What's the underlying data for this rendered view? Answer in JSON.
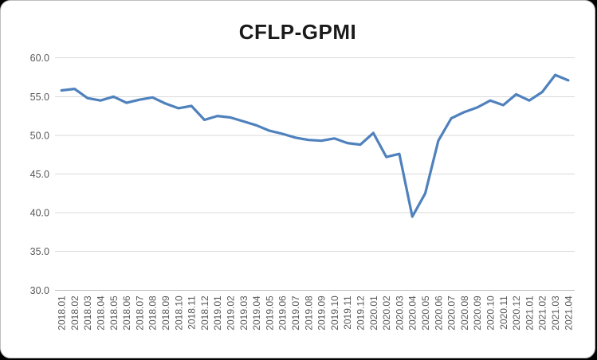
{
  "chart_data": {
    "type": "line",
    "title": "CFLP-GPMI",
    "categories": [
      "2018.01",
      "2018.02",
      "2018.03",
      "2018.04",
      "2018.05",
      "2018.06",
      "2018.07",
      "2018.08",
      "2018.09",
      "2018.10",
      "2018.11",
      "2018.12",
      "2019.01",
      "2019.02",
      "2019.03",
      "2019.04",
      "2019.05",
      "2019.06",
      "2019.07",
      "2019.08",
      "2019.09",
      "2019.10",
      "2019.11",
      "2019.12",
      "2020.01",
      "2020.02",
      "2020.03",
      "2020.04",
      "2020.05",
      "2020.06",
      "2020.07",
      "2020.08",
      "2020.09",
      "2020.10",
      "2020.11",
      "2020.12",
      "2021.01",
      "2021.02",
      "2021.03",
      "2021.04"
    ],
    "values": [
      55.8,
      56.0,
      54.8,
      54.5,
      55.0,
      54.2,
      54.6,
      54.9,
      54.1,
      53.5,
      53.8,
      52.0,
      52.5,
      52.3,
      51.8,
      51.3,
      50.6,
      50.2,
      49.7,
      49.4,
      49.3,
      49.6,
      49.0,
      48.8,
      50.3,
      47.2,
      47.6,
      39.5,
      42.5,
      49.3,
      52.2,
      53.0,
      53.6,
      54.5,
      53.9,
      55.3,
      54.5,
      55.6,
      57.8,
      57.1
    ],
    "xlabel": "",
    "ylabel": "",
    "ylim": [
      30.0,
      60.0
    ],
    "ytick_step": 5.0,
    "ytick_labels": [
      "60.0",
      "55.0",
      "50.0",
      "45.0",
      "40.0",
      "35.0",
      "30.0"
    ],
    "ytick_values": [
      60,
      55,
      50,
      45,
      40,
      35,
      30
    ],
    "grid": "horizontal",
    "legend": "none",
    "colors": {
      "series_line": "#4F81BD",
      "gridline": "#D9D9D9",
      "axis_line": "#BDBDBD",
      "tick_label": "#595959",
      "title": "#1a1a1a",
      "background": "#FFFFFF",
      "border": "#BFBDBD"
    }
  }
}
